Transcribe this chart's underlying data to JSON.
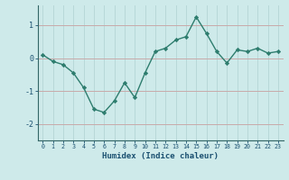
{
  "x": [
    0,
    1,
    2,
    3,
    4,
    5,
    6,
    7,
    8,
    9,
    10,
    11,
    12,
    13,
    14,
    15,
    16,
    17,
    18,
    19,
    20,
    21,
    22,
    23
  ],
  "y": [
    0.1,
    -0.1,
    -0.2,
    -0.45,
    -0.9,
    -1.55,
    -1.65,
    -1.3,
    -0.75,
    -1.2,
    -0.45,
    0.2,
    0.3,
    0.55,
    0.65,
    1.25,
    0.75,
    0.2,
    -0.15,
    0.25,
    0.2,
    0.3,
    0.15,
    0.2
  ],
  "line_color": "#2e7d6e",
  "marker_color": "#2e7d6e",
  "bg_color": "#ceeaea",
  "vgrid_color": "#b8d8d8",
  "hgrid_color": "#c8aaaa",
  "xlabel": "Humidex (Indice chaleur)",
  "xlabel_color": "#1a5070",
  "tick_color": "#1a5070",
  "yticks": [
    -2,
    -1,
    0,
    1
  ],
  "ylim": [
    -2.5,
    1.6
  ],
  "xlim": [
    -0.5,
    23.5
  ]
}
